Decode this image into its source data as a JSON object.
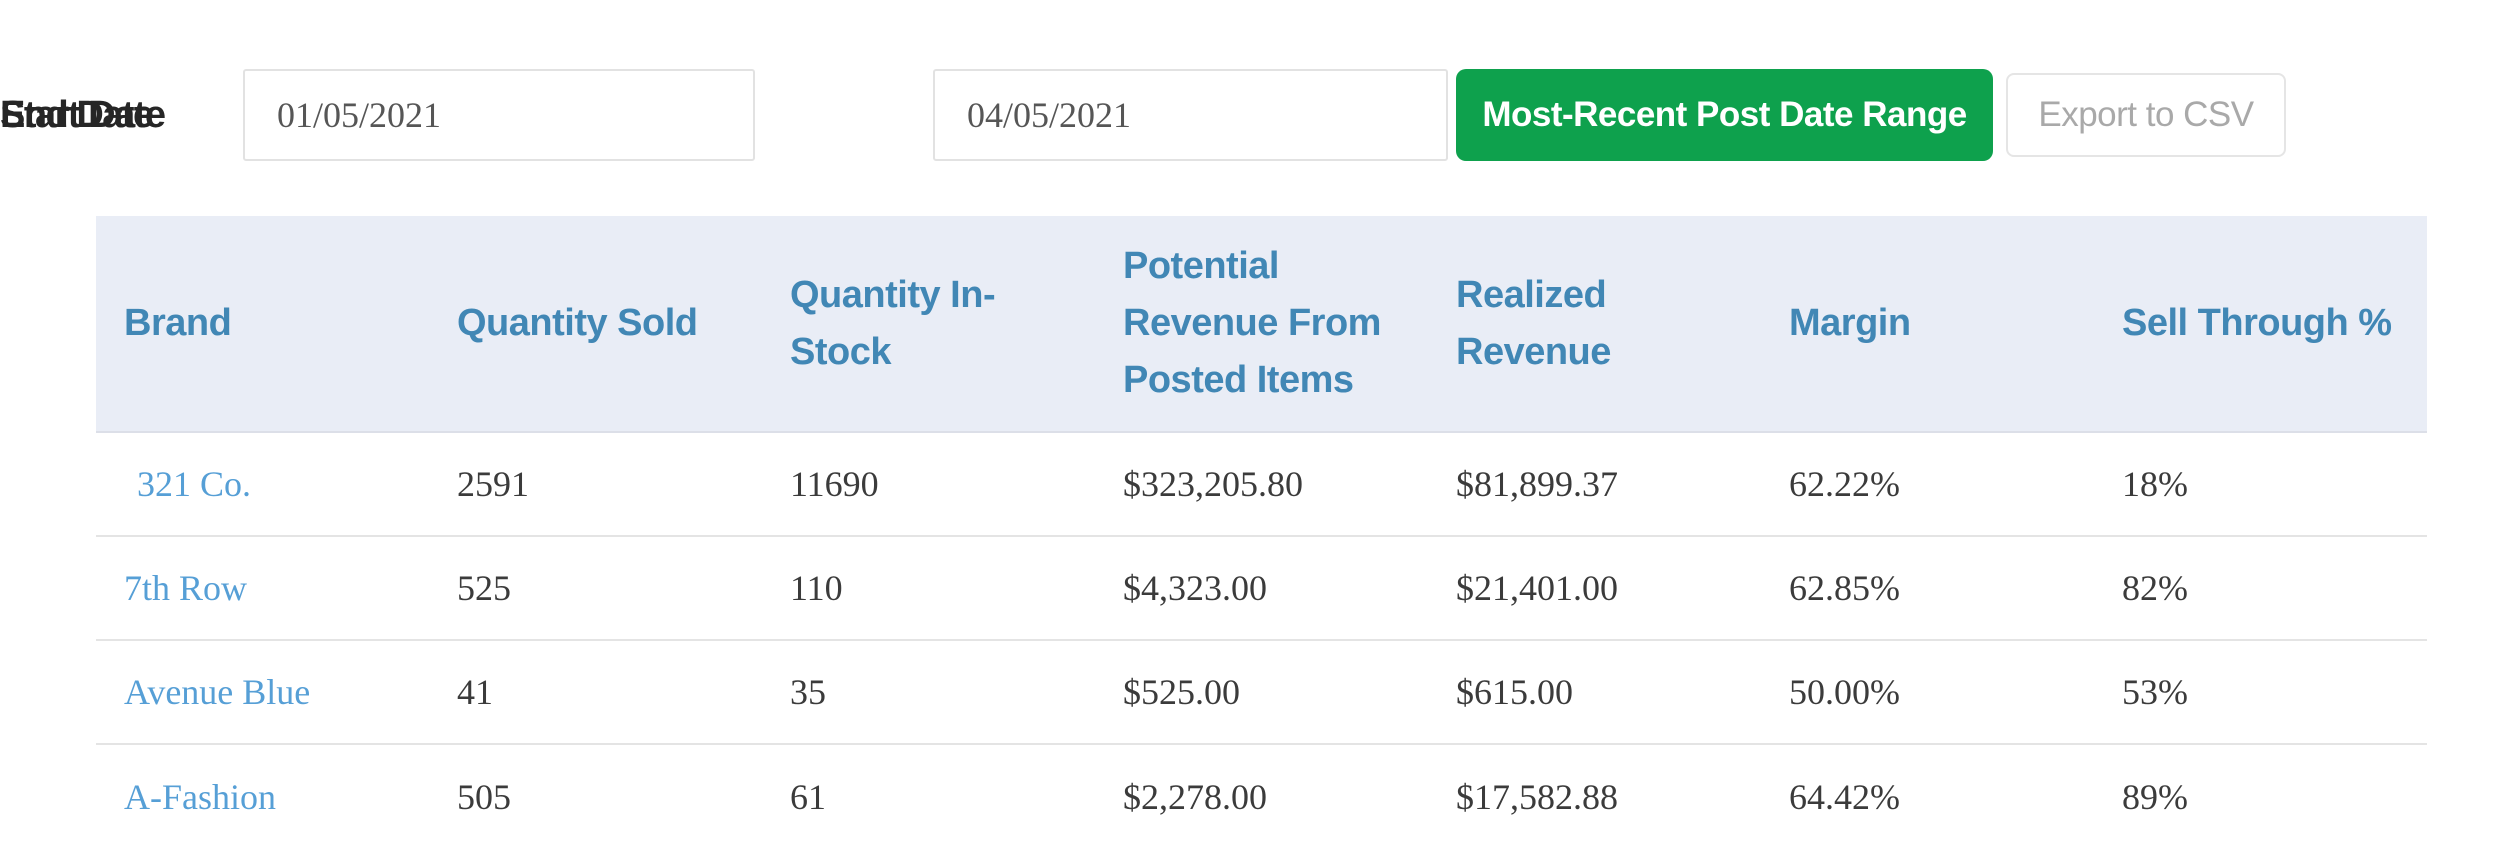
{
  "controls": {
    "start_date": {
      "label": "Start Date",
      "value": "01/05/2021"
    },
    "end_date": {
      "label": "End Date",
      "value": "04/05/2021"
    },
    "post_date_range_button": "Most-Recent Post Date Range",
    "export_csv_button": "Export to CSV"
  },
  "table": {
    "columns": [
      "Brand",
      "Quantity Sold",
      "Quantity In-\nStock",
      "Potential\nRevenue From\nPosted Items",
      "Realized\nRevenue",
      "Margin",
      "Sell Through %"
    ],
    "rows": [
      {
        "brand": "321 Co.",
        "quantity_sold": "2591",
        "quantity_in_stock": "11690",
        "potential_revenue": "$323,205.80",
        "realized_revenue": "$81,899.37",
        "margin": "62.22%",
        "sell_through": "18%"
      },
      {
        "brand": "7th Row",
        "quantity_sold": "525",
        "quantity_in_stock": "110",
        "potential_revenue": "$4,323.00",
        "realized_revenue": "$21,401.00",
        "margin": "62.85%",
        "sell_through": "82%"
      },
      {
        "brand": "Avenue Blue",
        "quantity_sold": "41",
        "quantity_in_stock": "35",
        "potential_revenue": "$525.00",
        "realized_revenue": "$615.00",
        "margin": "50.00%",
        "sell_through": "53%"
      },
      {
        "brand": "A-Fashion",
        "quantity_sold": "505",
        "quantity_in_stock": "61",
        "potential_revenue": "$2,278.00",
        "realized_revenue": "$17,582.88",
        "margin": "64.42%",
        "sell_through": "89%"
      }
    ]
  },
  "colors": {
    "header_bg": "#e9edf6",
    "header_text": "#4187b5",
    "brand_link": "#569fd6",
    "button_green": "#0ea14d",
    "cell_text": "#3b3b3b",
    "separator": "#e4e4e4",
    "muted_text": "#a9a9a9"
  }
}
